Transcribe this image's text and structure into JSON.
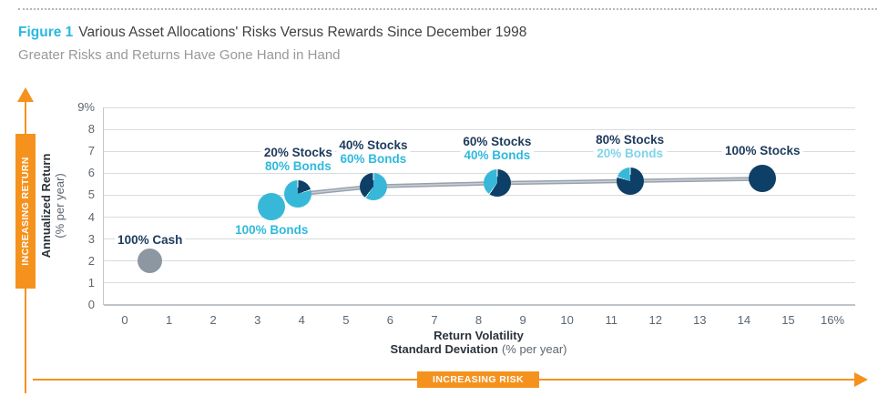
{
  "header": {
    "figure_label": "Figure 1",
    "title": "Various Asset Allocations' Risks Versus Rewards Since December 1998",
    "subtitle": "Greater Risks and Returns Have Gone Hand in Hand"
  },
  "annotations": {
    "increasing_return": "INCREASING RETURN",
    "increasing_risk": "INCREASING RISK"
  },
  "chart_data": {
    "type": "scatter",
    "title": "Various Asset Allocations' Risks Versus Rewards Since December 1998",
    "x_axis": {
      "title_line1": "Return Volatility",
      "title_line2_bold": "Standard Deviation",
      "title_line2_normal": "(% per year)",
      "ticks": [
        "0",
        "1",
        "2",
        "3",
        "4",
        "5",
        "6",
        "7",
        "8",
        "9",
        "10",
        "11",
        "12",
        "13",
        "14",
        "15",
        "16%"
      ],
      "range": [
        0,
        16
      ],
      "grid": false
    },
    "y_axis": {
      "title_line1": "Annualized Return",
      "title_line2": "(% per year)",
      "ticks": [
        "9%",
        "8",
        "7",
        "6",
        "5",
        "4",
        "3",
        "2",
        "1",
        "0"
      ],
      "range": [
        0,
        9
      ],
      "grid": true
    },
    "points": [
      {
        "name": "100% Cash",
        "x": 0.55,
        "y": 2.0,
        "marker": "cash",
        "connected": false,
        "label_pos": "above",
        "label_lines": [
          {
            "text": "100% Cash",
            "color": "label_cash"
          }
        ]
      },
      {
        "name": "100% Bonds",
        "x": 3.3,
        "y": 4.5,
        "marker": "bonds",
        "connected": false,
        "label_pos": "below",
        "label_lines": [
          {
            "text": "100% Bonds",
            "color": "label_bonds"
          }
        ]
      },
      {
        "name": "20% Stocks 80% Bonds",
        "x": 3.9,
        "y": 5.05,
        "marker": "pie",
        "stocks_pct": 20,
        "stocks_arc_start": 0,
        "connected": true,
        "label_pos": "above",
        "label_lines": [
          {
            "text": "20% Stocks",
            "color": "label_stocks"
          },
          {
            "text": "80% Bonds",
            "color": "label_bonds"
          }
        ]
      },
      {
        "name": "40% Stocks 60% Bonds",
        "x": 5.6,
        "y": 5.4,
        "marker": "pie",
        "stocks_pct": 40,
        "stocks_arc_start": 216,
        "connected": true,
        "label_pos": "above",
        "label_lines": [
          {
            "text": "40% Stocks",
            "color": "label_stocks"
          },
          {
            "text": "60% Bonds",
            "color": "label_bonds"
          }
        ]
      },
      {
        "name": "60% Stocks 40% Bonds",
        "x": 8.4,
        "y": 5.55,
        "marker": "pie",
        "stocks_pct": 60,
        "stocks_arc_start": 0,
        "connected": true,
        "label_pos": "above",
        "label_lines": [
          {
            "text": "60% Stocks",
            "color": "label_stocks"
          },
          {
            "text": "40% Bonds",
            "color": "label_bonds"
          }
        ]
      },
      {
        "name": "80% Stocks 20% Bonds",
        "x": 11.4,
        "y": 5.65,
        "marker": "pie",
        "stocks_pct": 80,
        "stocks_arc_start": 0,
        "connected": true,
        "label_pos": "above",
        "label_lines": [
          {
            "text": "80% Stocks",
            "color": "label_stocks"
          },
          {
            "text": "20% Bonds",
            "color": "label_bonds_light"
          }
        ]
      },
      {
        "name": "100% Stocks",
        "x": 14.4,
        "y": 5.75,
        "marker": "stocks",
        "connected": true,
        "label_pos": "above",
        "label_lines": [
          {
            "text": "100% Stocks",
            "color": "label_stocks"
          }
        ]
      }
    ],
    "legend_position": "none",
    "grid": "horizontal-only"
  },
  "colors": {
    "accent_cyan": "#29b8e0",
    "pie_bonds": "#38b8d8",
    "pie_stocks": "#0e3f67",
    "marker_cash": "#8d97a2",
    "label_cash": "#1d3a5c",
    "label_stocks": "#1d3a5c",
    "label_bonds": "#2fb9dd",
    "label_bonds_light": "#7fd4e9",
    "connector": "#98a2ac",
    "connector_highlight": "#c9ced4",
    "orange": "#f5921e",
    "gridline": "#d9dbdd",
    "axis_line": "#bfc4c9",
    "tick_text": "#5c6670",
    "axis_title": "#2b333b",
    "title_text": "#414044",
    "subtitle_text": "#97999b"
  }
}
